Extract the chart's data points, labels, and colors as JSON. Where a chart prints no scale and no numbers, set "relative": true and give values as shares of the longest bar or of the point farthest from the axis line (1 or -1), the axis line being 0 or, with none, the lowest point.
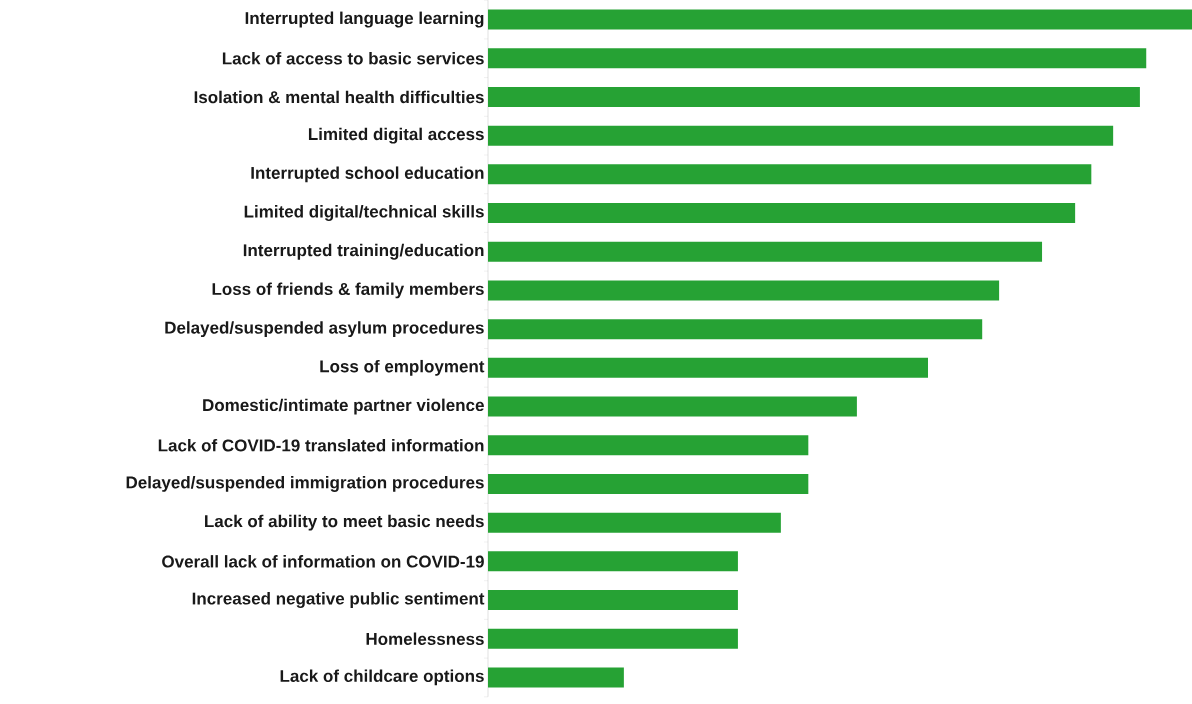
{
  "chart_data": {
    "type": "bar",
    "orientation": "horizontal",
    "relative": true,
    "categories": [
      "Interrupted language learning",
      "Lack of access to basic services",
      "Isolation & mental health difficulties",
      "Limited digital access",
      "Interrupted school education",
      "Limited digital/technical skills",
      "Interrupted training/education",
      "Loss of friends & family members",
      "Delayed/suspended asylum procedures",
      "Loss of employment",
      "Domestic/intimate partner violence",
      "Lack of COVID-19 translated information",
      "Delayed/suspended immigration procedures",
      "Lack of ability to meet basic needs",
      "Overall lack of information on COVID-19",
      "Increased negative public sentiment",
      "Homelessness",
      "Lack of childcare options"
    ],
    "values": [
      1,
      0.935,
      0.926,
      0.888,
      0.857,
      0.834,
      0.787,
      0.726,
      0.702,
      0.625,
      0.524,
      0.455,
      0.455,
      0.416,
      0.355,
      0.355,
      0.355,
      0.193
    ],
    "color": "#26a234"
  }
}
